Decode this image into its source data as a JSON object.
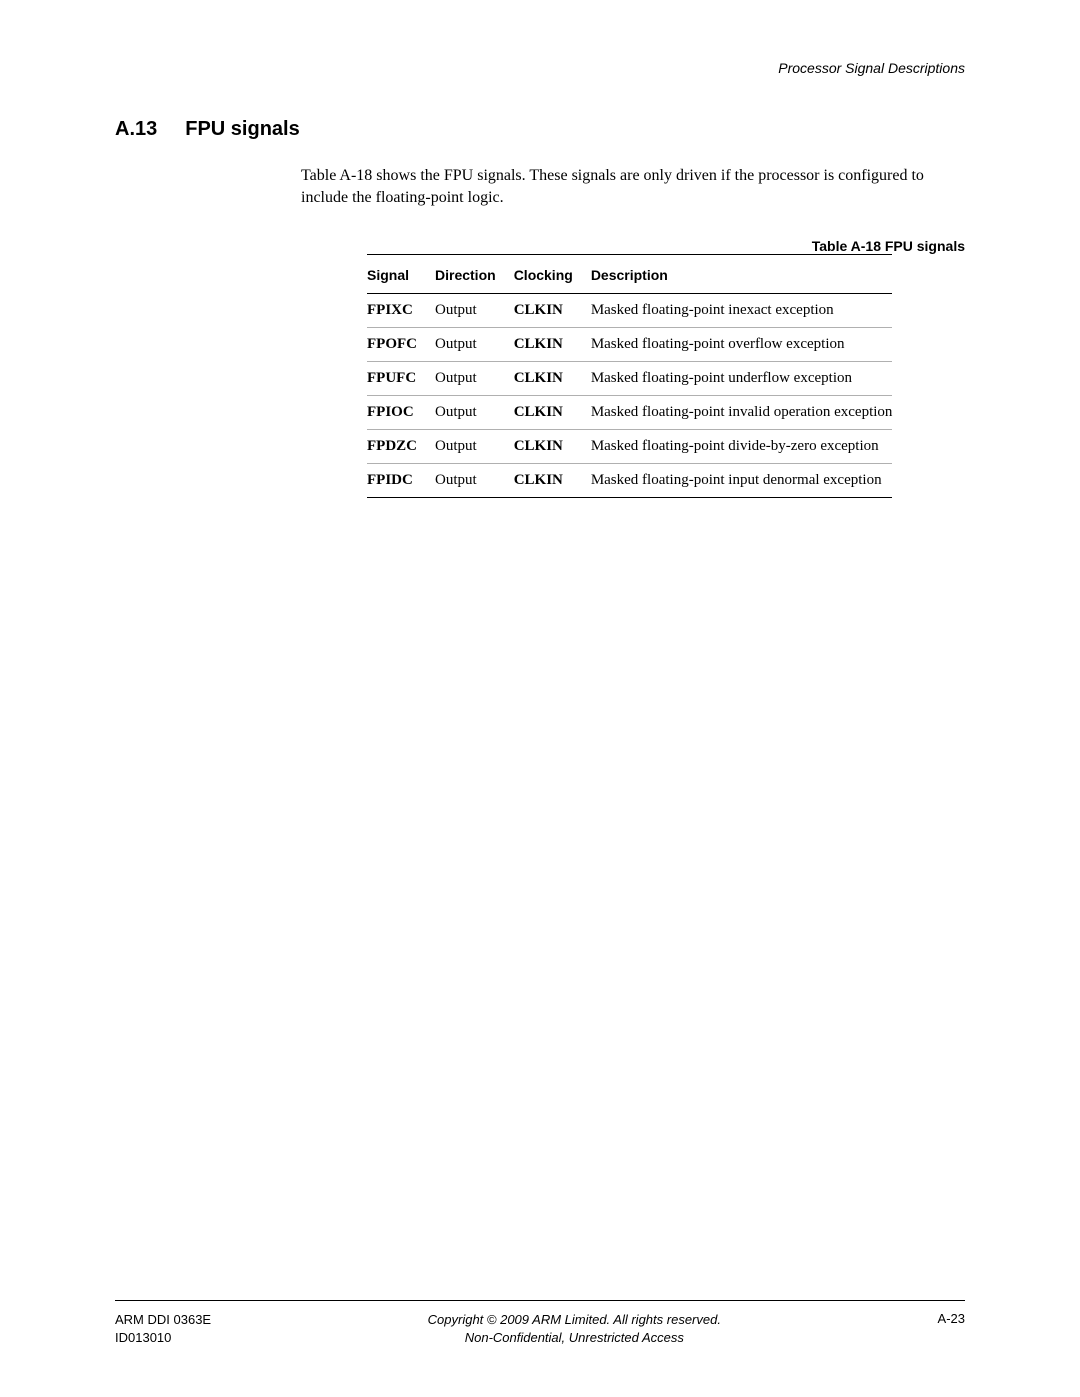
{
  "header": {
    "chapter_title": "Processor Signal Descriptions"
  },
  "section": {
    "number": "A.13",
    "title": "FPU signals",
    "body": "Table A-18 shows the FPU signals. These signals are only driven if the processor is configured to include the floating-point logic."
  },
  "table": {
    "caption": "Table A-18 FPU signals",
    "columns": [
      "Signal",
      "Direction",
      "Clocking",
      "Description"
    ],
    "rows": [
      [
        "FPIXC",
        "Output",
        "CLKIN",
        "Masked floating-point inexact exception"
      ],
      [
        "FPOFC",
        "Output",
        "CLKIN",
        "Masked floating-point overflow exception"
      ],
      [
        "FPUFC",
        "Output",
        "CLKIN",
        "Masked floating-point underflow exception"
      ],
      [
        "FPIOC",
        "Output",
        "CLKIN",
        "Masked floating-point invalid operation exception"
      ],
      [
        "FPDZC",
        "Output",
        "CLKIN",
        "Masked floating-point divide-by-zero exception"
      ],
      [
        "FPIDC",
        "Output",
        "CLKIN",
        "Masked floating-point input denormal exception"
      ]
    ],
    "styling": {
      "header_font": "Arial",
      "header_weight": "bold",
      "header_fontsize": 14,
      "body_font": "Times New Roman",
      "body_fontsize": 15,
      "signal_col_bold": true,
      "clocking_col_bold": true,
      "top_border_color": "#000000",
      "row_border_color": "#b0b0b0",
      "bottom_border_color": "#000000"
    }
  },
  "footer": {
    "left_line1": "ARM DDI 0363E",
    "left_line2": "ID013010",
    "center_line1": "Copyright © 2009 ARM Limited. All rights reserved.",
    "center_line2": "Non-Confidential, Unrestricted Access",
    "right": "A-23"
  },
  "colors": {
    "text": "#000000",
    "background": "#ffffff",
    "rule": "#000000",
    "row_rule": "#b0b0b0"
  },
  "typography": {
    "heading_font": "Arial",
    "heading_size_pt": 15,
    "body_font": "Times New Roman",
    "body_size_pt": 12,
    "footer_font": "Arial",
    "footer_size_pt": 10
  }
}
